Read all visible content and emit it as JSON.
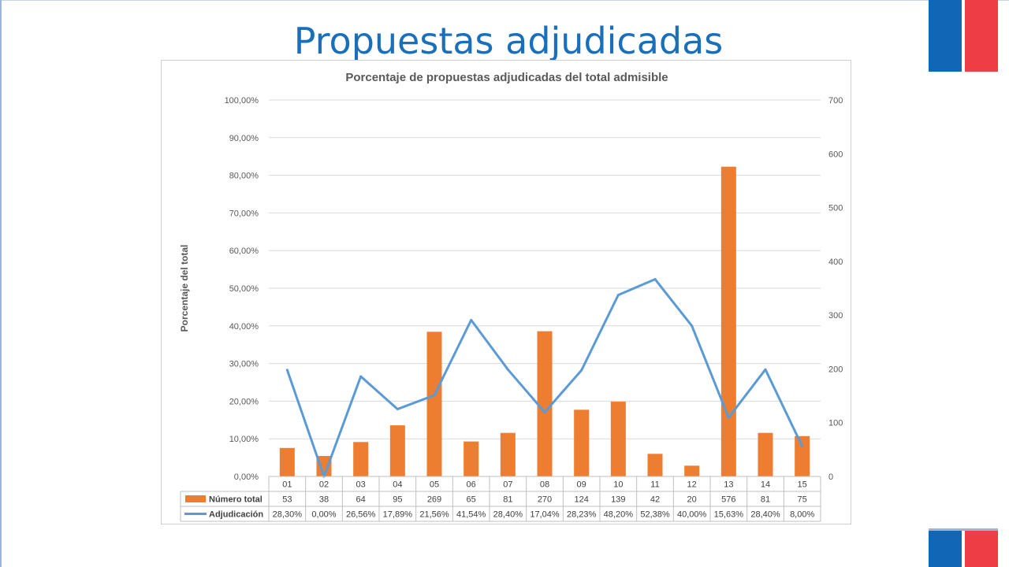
{
  "slide": {
    "title": "Propuestas adjudicadas"
  },
  "colors": {
    "title": "#1a6fba",
    "bar": "#ed7d31",
    "line": "#5b9bd5",
    "flag_blue": "#0f67b5",
    "flag_red": "#ee3d44"
  },
  "chart_data": {
    "type": "bar",
    "title": "Porcentaje de propuestas adjudicadas del total admisible",
    "ylabel": "Porcentaje del total",
    "categories": [
      "01",
      "02",
      "03",
      "04",
      "05",
      "06",
      "07",
      "08",
      "09",
      "10",
      "11",
      "12",
      "13",
      "14",
      "15"
    ],
    "y_left": {
      "min": 0,
      "max": 100,
      "ticks": [
        "0,00%",
        "10,00%",
        "20,00%",
        "30,00%",
        "40,00%",
        "50,00%",
        "60,00%",
        "70,00%",
        "80,00%",
        "90,00%",
        "100,00%"
      ]
    },
    "y_right": {
      "min": 0,
      "max": 700,
      "ticks": [
        "0",
        "100",
        "200",
        "300",
        "400",
        "500",
        "600",
        "700"
      ]
    },
    "grid": true,
    "legend": "data-table-bottom",
    "series": [
      {
        "name": "Número total",
        "type": "bar",
        "axis": "right",
        "values": [
          53,
          38,
          64,
          95,
          269,
          65,
          81,
          270,
          124,
          139,
          42,
          20,
          576,
          81,
          75
        ],
        "labels": [
          "53",
          "38",
          "64",
          "95",
          "269",
          "65",
          "81",
          "270",
          "124",
          "139",
          "42",
          "20",
          "576",
          "81",
          "75"
        ]
      },
      {
        "name": "Adjudicación",
        "type": "line",
        "axis": "left",
        "values": [
          28.3,
          0.0,
          26.56,
          17.89,
          21.56,
          41.54,
          28.4,
          17.04,
          28.23,
          48.2,
          52.38,
          40.0,
          15.63,
          28.4,
          8.0
        ],
        "labels": [
          "28,30%",
          "0,00%",
          "26,56%",
          "17,89%",
          "21,56%",
          "41,54%",
          "28,40%",
          "17,04%",
          "28,23%",
          "48,20%",
          "52,38%",
          "40,00%",
          "15,63%",
          "28,40%",
          "8,00%"
        ]
      }
    ]
  }
}
